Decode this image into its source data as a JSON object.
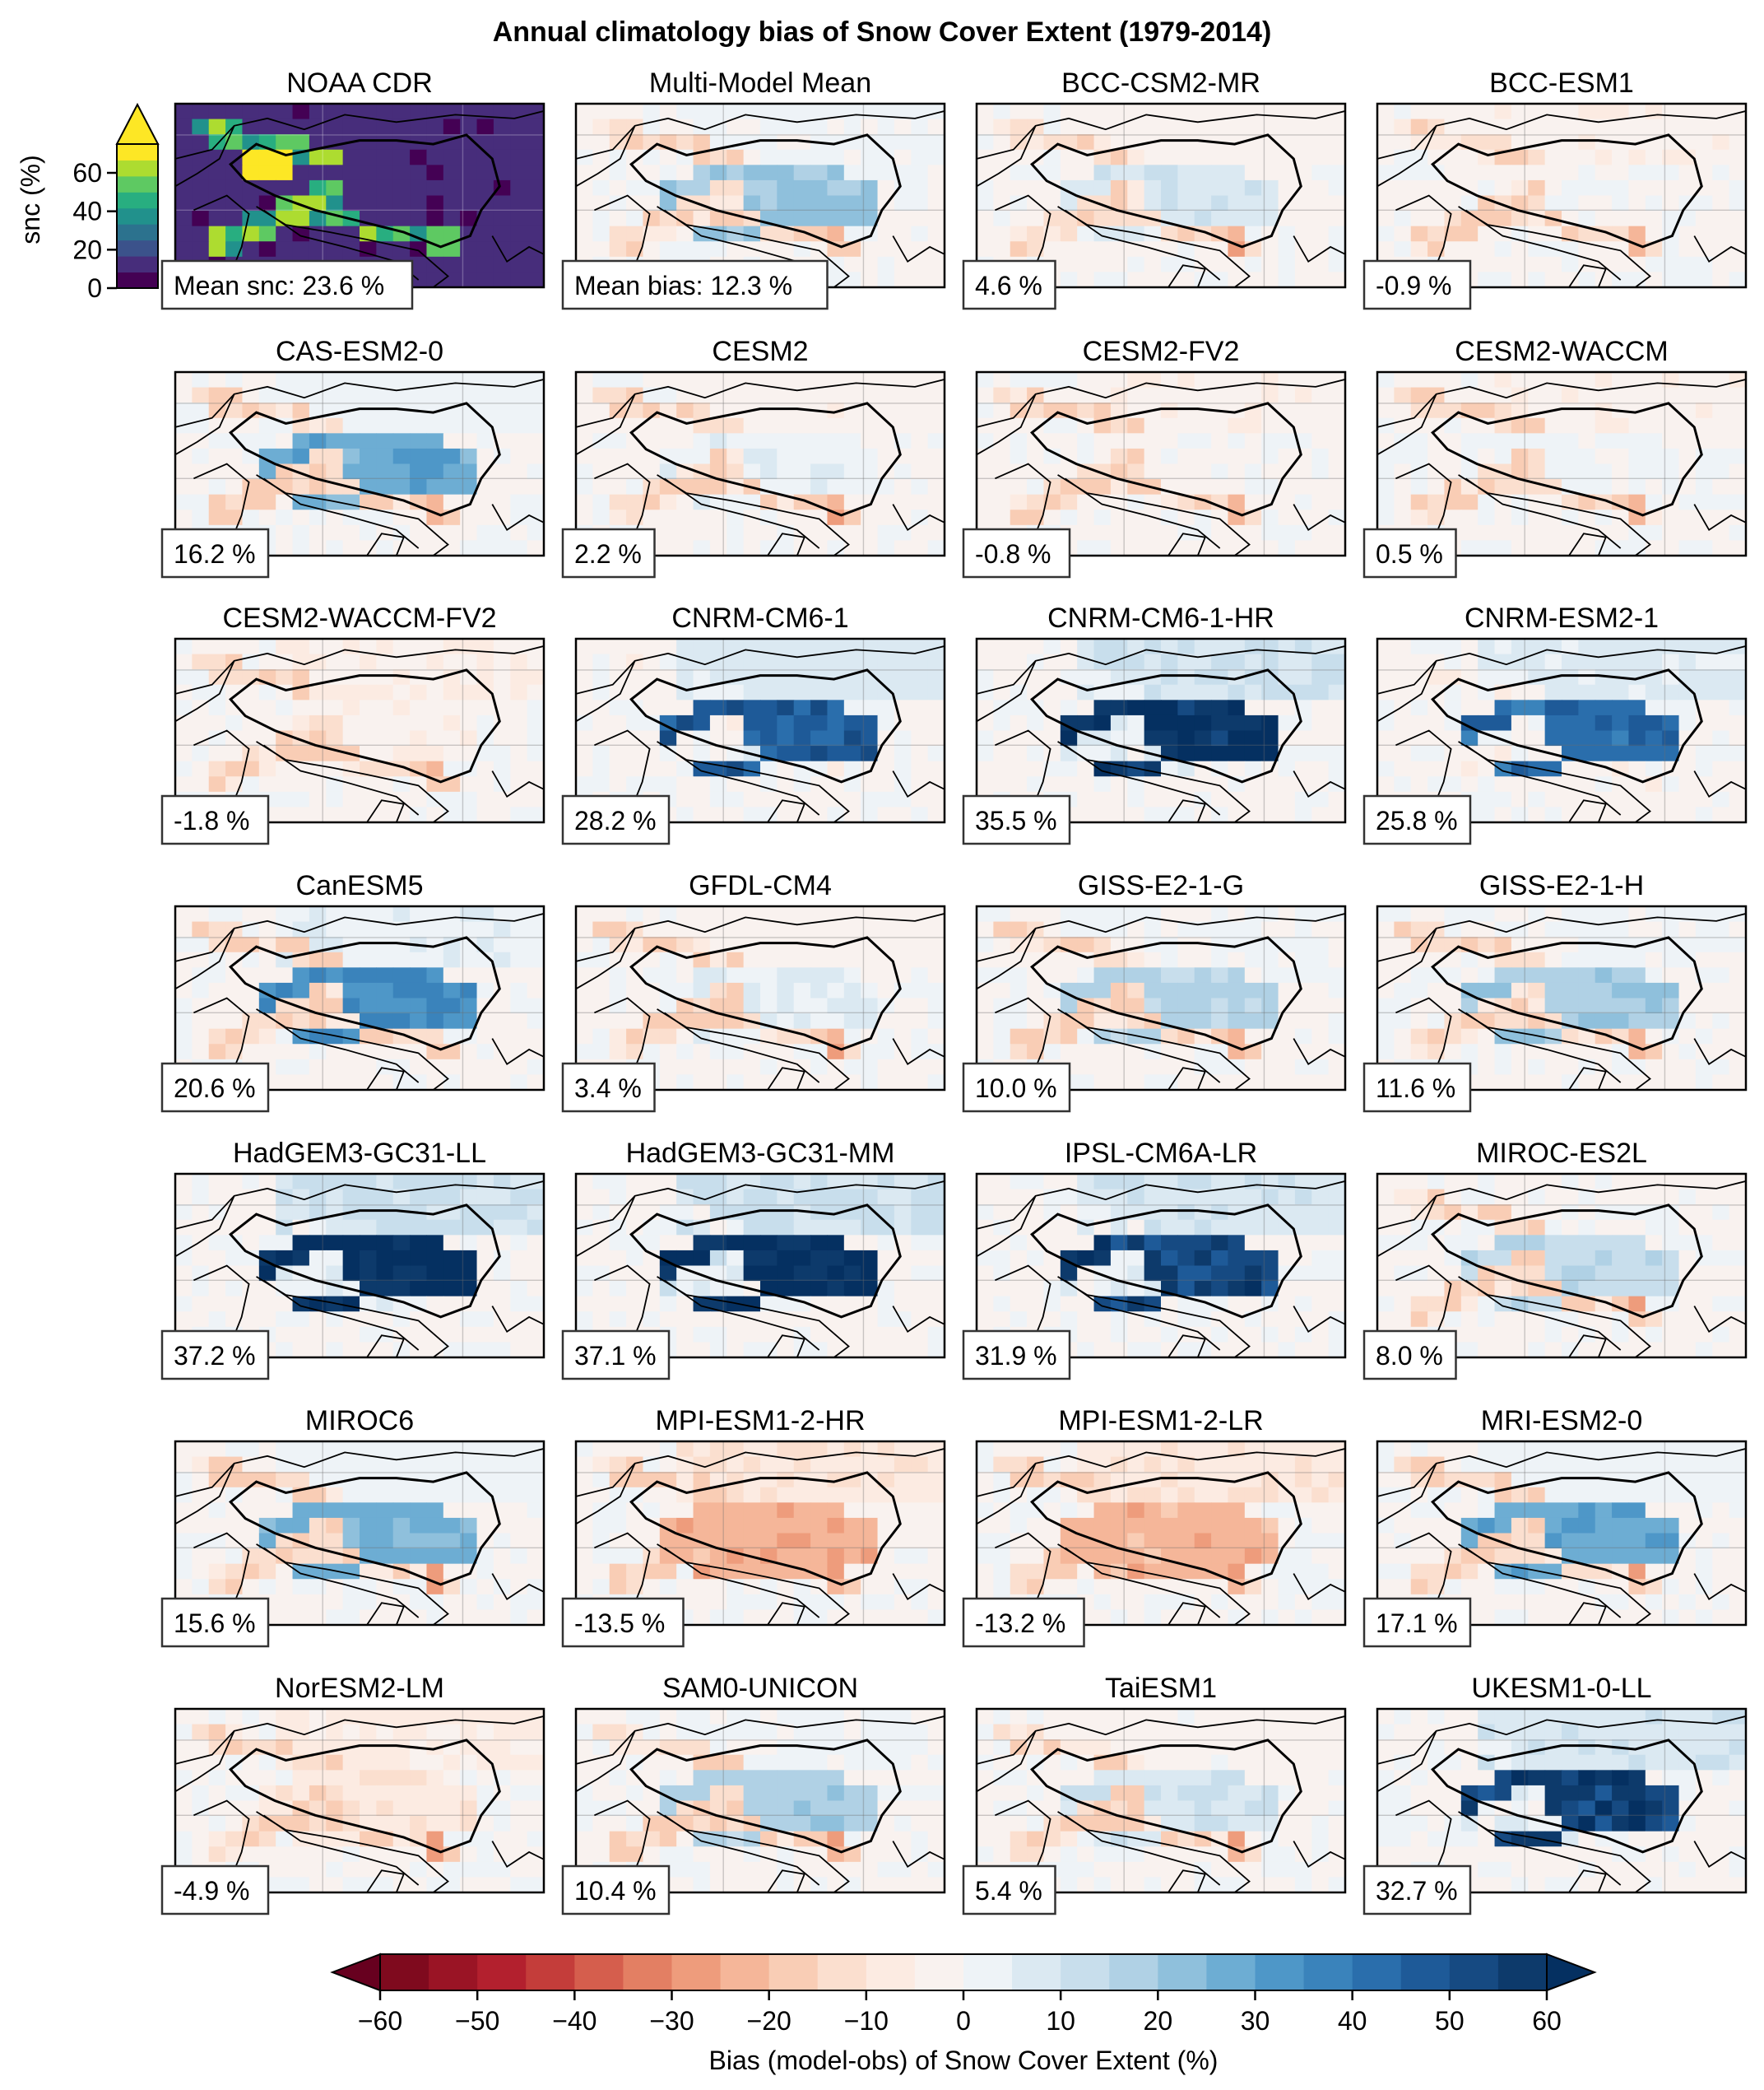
{
  "figure": {
    "title": "Annual climatology bias of Snow Cover Extent (1979-2014)"
  },
  "chart_data": {
    "type": "heatmap",
    "title": "Annual climatology bias of Snow Cover Extent (1979-2014)",
    "panels": [
      {
        "name": "NOAA CDR",
        "label": "Mean snc: 23.6 %",
        "value": 23.6,
        "kind": "obs"
      },
      {
        "name": "Multi-Model Mean",
        "label": "Mean bias: 12.3 %",
        "value": 12.3,
        "kind": "bias"
      },
      {
        "name": "BCC-CSM2-MR",
        "label": "4.6 %",
        "value": 4.6,
        "kind": "bias"
      },
      {
        "name": "BCC-ESM1",
        "label": "-0.9 %",
        "value": -0.9,
        "kind": "bias"
      },
      {
        "name": "CAS-ESM2-0",
        "label": "16.2 %",
        "value": 16.2,
        "kind": "bias"
      },
      {
        "name": "CESM2",
        "label": "2.2 %",
        "value": 2.2,
        "kind": "bias"
      },
      {
        "name": "CESM2-FV2",
        "label": "-0.8 %",
        "value": -0.8,
        "kind": "bias"
      },
      {
        "name": "CESM2-WACCM",
        "label": "0.5 %",
        "value": 0.5,
        "kind": "bias"
      },
      {
        "name": "CESM2-WACCM-FV2",
        "label": "-1.8 %",
        "value": -1.8,
        "kind": "bias"
      },
      {
        "name": "CNRM-CM6-1",
        "label": "28.2 %",
        "value": 28.2,
        "kind": "bias"
      },
      {
        "name": "CNRM-CM6-1-HR",
        "label": "35.5 %",
        "value": 35.5,
        "kind": "bias"
      },
      {
        "name": "CNRM-ESM2-1",
        "label": "25.8 %",
        "value": 25.8,
        "kind": "bias"
      },
      {
        "name": "CanESM5",
        "label": "20.6 %",
        "value": 20.6,
        "kind": "bias"
      },
      {
        "name": "GFDL-CM4",
        "label": "3.4 %",
        "value": 3.4,
        "kind": "bias"
      },
      {
        "name": "GISS-E2-1-G",
        "label": "10.0 %",
        "value": 10.0,
        "kind": "bias"
      },
      {
        "name": "GISS-E2-1-H",
        "label": "11.6 %",
        "value": 11.6,
        "kind": "bias"
      },
      {
        "name": "HadGEM3-GC31-LL",
        "label": "37.2 %",
        "value": 37.2,
        "kind": "bias"
      },
      {
        "name": "HadGEM3-GC31-MM",
        "label": "37.1 %",
        "value": 37.1,
        "kind": "bias"
      },
      {
        "name": "IPSL-CM6A-LR",
        "label": "31.9 %",
        "value": 31.9,
        "kind": "bias"
      },
      {
        "name": "MIROC-ES2L",
        "label": "8.0 %",
        "value": 8.0,
        "kind": "bias"
      },
      {
        "name": "MIROC6",
        "label": "15.6 %",
        "value": 15.6,
        "kind": "bias"
      },
      {
        "name": "MPI-ESM1-2-HR",
        "label": "-13.5 %",
        "value": -13.5,
        "kind": "bias"
      },
      {
        "name": "MPI-ESM1-2-LR",
        "label": "-13.2 %",
        "value": -13.2,
        "kind": "bias"
      },
      {
        "name": "MRI-ESM2-0",
        "label": "17.1 %",
        "value": 17.1,
        "kind": "bias"
      },
      {
        "name": "NorESM2-LM",
        "label": "-4.9 %",
        "value": -4.9,
        "kind": "bias"
      },
      {
        "name": "SAM0-UNICON",
        "label": "10.4 %",
        "value": 10.4,
        "kind": "bias"
      },
      {
        "name": "TaiESM1",
        "label": "5.4 %",
        "value": 5.4,
        "kind": "bias"
      },
      {
        "name": "UKESM1-0-LL",
        "label": "32.7 %",
        "value": 32.7,
        "kind": "bias"
      }
    ],
    "obs_colorbar": {
      "label": "snc (%)",
      "ticks": [
        "0",
        "20",
        "40",
        "60"
      ],
      "range": [
        0,
        75
      ],
      "extend": "max",
      "colors": [
        "#440154",
        "#472d7b",
        "#3b528b",
        "#2c728e",
        "#21918c",
        "#28ae80",
        "#5ec962",
        "#addc30",
        "#fde725"
      ]
    },
    "bias_colorbar": {
      "label": "Bias (model-obs) of Snow Cover Extent (%)",
      "ticks": [
        "−60",
        "−50",
        "−40",
        "−30",
        "−20",
        "−10",
        "0",
        "10",
        "20",
        "30",
        "40",
        "50",
        "60"
      ],
      "range": [
        -60,
        60
      ],
      "step": 5,
      "extend": "both",
      "colors": [
        "#7f0a1e",
        "#9a1425",
        "#b3202e",
        "#c43d3a",
        "#d55e4d",
        "#e37f63",
        "#ee9c7c",
        "#f5b699",
        "#f9cdb5",
        "#fbdfcf",
        "#fcebe2",
        "#f9f2ef",
        "#eef3f7",
        "#dbe9f2",
        "#c8deec",
        "#b0d1e5",
        "#8fc0dc",
        "#6dadd3",
        "#4e97c8",
        "#3a83bb",
        "#2a6eac",
        "#1e5a98",
        "#164a82",
        "#0d3a6b"
      ],
      "under_color": "#67001f",
      "over_color": "#053061"
    }
  }
}
